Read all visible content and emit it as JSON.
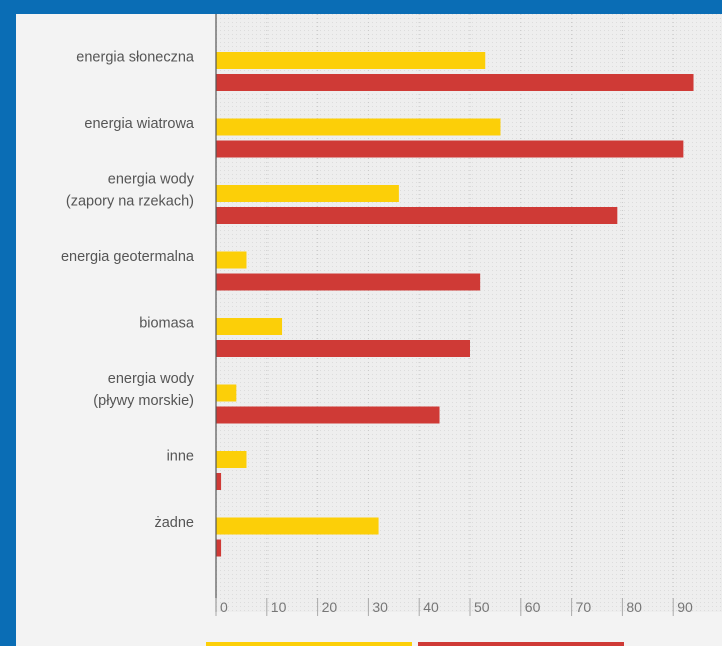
{
  "colors": {
    "background_frame": "#0a6db5",
    "panel": "#f3f3f3",
    "plot_area": "#eeeeee",
    "series_yellow": "#fccf08",
    "series_red": "#cf3a36",
    "axis": "#555555"
  },
  "chart_data": {
    "type": "bar",
    "orientation": "horizontal",
    "title": "",
    "xlabel": "",
    "ylabel": "",
    "categories": [
      [
        "energia słoneczna"
      ],
      [
        "energia wiatrowa"
      ],
      [
        "energia wody",
        "(zapory na rzekach)"
      ],
      [
        "energia geotermalna"
      ],
      [
        "biomasa"
      ],
      [
        "energia wody",
        "(pływy morskie)"
      ],
      [
        "inne"
      ],
      [
        "żadne"
      ]
    ],
    "series": [
      {
        "color": "#fccf08",
        "values": [
          53,
          56,
          36,
          6,
          13,
          4,
          6,
          32
        ]
      },
      {
        "color": "#cf3a36",
        "values": [
          94,
          92,
          79,
          52,
          50,
          44,
          1,
          1
        ]
      }
    ],
    "xlim": [
      0,
      97
    ],
    "xticks": [
      0,
      10,
      20,
      30,
      40,
      50,
      60,
      70,
      80,
      90
    ],
    "grid": "vertical dotted lines",
    "legend": "bottom, swatches only"
  }
}
